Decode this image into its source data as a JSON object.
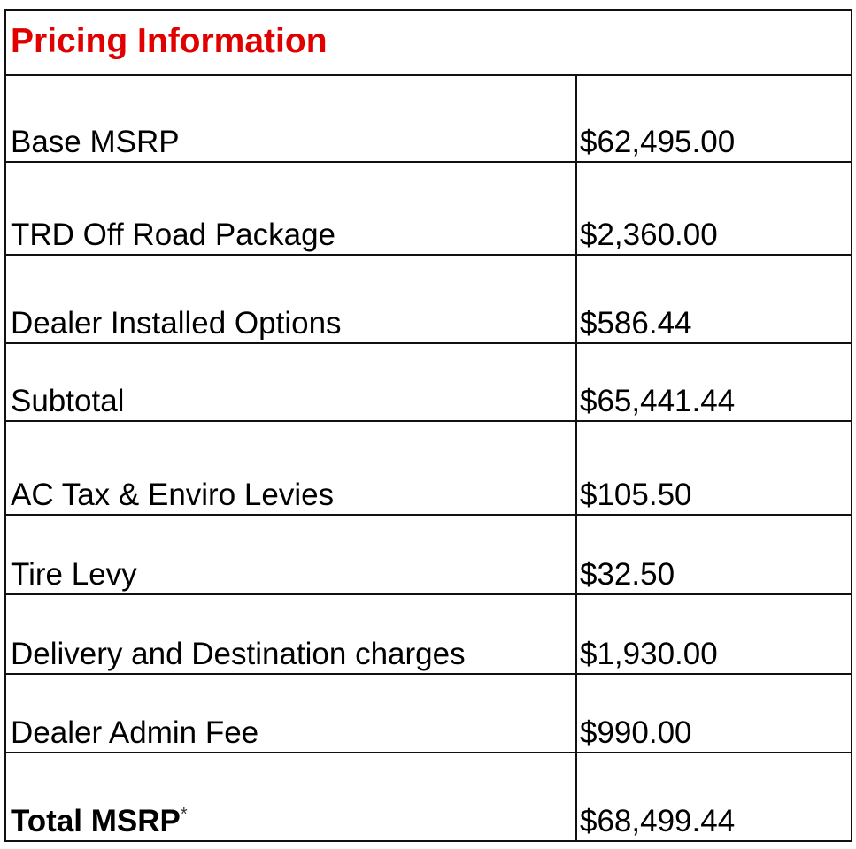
{
  "title": "Pricing Information",
  "rows": [
    {
      "label": "Base MSRP",
      "value": "$62,495.00"
    },
    {
      "label": "TRD Off Road Package",
      "value": "$2,360.00"
    },
    {
      "label": "Dealer Installed Options",
      "value": "$586.44"
    },
    {
      "label": "Subtotal",
      "value": "$65,441.44"
    },
    {
      "label": "AC Tax & Enviro Levies",
      "value": "$105.50"
    },
    {
      "label": "Tire Levy",
      "value": "$32.50"
    },
    {
      "label": "Delivery and Destination charges",
      "value": "$1,930.00"
    },
    {
      "label": "Dealer Admin Fee",
      "value": "$990.00"
    }
  ],
  "total": {
    "label": "Total MSRP",
    "asterisk": "*",
    "value": "$68,499.44"
  },
  "colors": {
    "title": "#e00000",
    "border": "#111111"
  }
}
